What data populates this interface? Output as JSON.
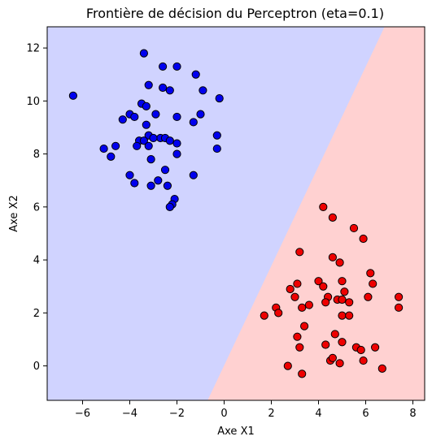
{
  "chart_data": {
    "type": "scatter",
    "title": "Frontière de décision du Perceptron (eta=0.1)",
    "xlabel": "Axe X1",
    "ylabel": "Axe X2",
    "xlim": [
      -7.5,
      8.5
    ],
    "ylim": [
      -1.3,
      12.8
    ],
    "xticks": [
      -6,
      -4,
      -2,
      0,
      2,
      4,
      6,
      8
    ],
    "yticks": [
      0,
      2,
      4,
      6,
      8,
      10,
      12
    ],
    "grid": false,
    "decision_boundary": {
      "points": [
        [
          -0.7,
          -1.3
        ],
        [
          6.8,
          12.8
        ]
      ],
      "region_left_color": "#d0d3ff",
      "region_right_color": "#ffd1d1"
    },
    "series": [
      {
        "color": "#0000ee",
        "edge_color": "#000000",
        "points": [
          [
            -6.4,
            10.2
          ],
          [
            -3.4,
            11.8
          ],
          [
            -2.6,
            11.3
          ],
          [
            -2.0,
            11.3
          ],
          [
            -1.2,
            11.0
          ],
          [
            -3.2,
            10.6
          ],
          [
            -2.6,
            10.5
          ],
          [
            -2.3,
            10.4
          ],
          [
            -0.9,
            10.4
          ],
          [
            -0.2,
            10.1
          ],
          [
            -3.5,
            9.9
          ],
          [
            -3.3,
            9.8
          ],
          [
            -4.0,
            9.5
          ],
          [
            -3.8,
            9.4
          ],
          [
            -4.3,
            9.3
          ],
          [
            -2.9,
            9.5
          ],
          [
            -2.0,
            9.4
          ],
          [
            -1.0,
            9.5
          ],
          [
            -1.3,
            9.2
          ],
          [
            -3.3,
            9.1
          ],
          [
            -3.2,
            8.7
          ],
          [
            -2.7,
            8.6
          ],
          [
            -2.5,
            8.6
          ],
          [
            -2.3,
            8.5
          ],
          [
            -3.0,
            8.6
          ],
          [
            -3.6,
            8.5
          ],
          [
            -3.4,
            8.5
          ],
          [
            -3.7,
            8.3
          ],
          [
            -3.2,
            8.3
          ],
          [
            -2.0,
            8.4
          ],
          [
            -0.3,
            8.7
          ],
          [
            -0.3,
            8.2
          ],
          [
            -5.1,
            8.2
          ],
          [
            -4.6,
            8.3
          ],
          [
            -4.8,
            7.9
          ],
          [
            -2.0,
            8.0
          ],
          [
            -3.1,
            7.8
          ],
          [
            -2.5,
            7.4
          ],
          [
            -4.0,
            7.2
          ],
          [
            -2.8,
            7.0
          ],
          [
            -1.3,
            7.2
          ],
          [
            -3.8,
            6.9
          ],
          [
            -3.1,
            6.8
          ],
          [
            -2.4,
            6.8
          ],
          [
            -2.1,
            6.3
          ],
          [
            -2.2,
            6.1
          ],
          [
            -2.3,
            6.0
          ]
        ]
      },
      {
        "color": "#ee0000",
        "edge_color": "#000000",
        "points": [
          [
            4.2,
            6.0
          ],
          [
            4.6,
            5.6
          ],
          [
            5.5,
            5.2
          ],
          [
            5.9,
            4.8
          ],
          [
            3.2,
            4.3
          ],
          [
            4.6,
            4.1
          ],
          [
            4.9,
            3.9
          ],
          [
            6.2,
            3.5
          ],
          [
            3.1,
            3.1
          ],
          [
            4.0,
            3.2
          ],
          [
            5.0,
            3.2
          ],
          [
            6.3,
            3.1
          ],
          [
            2.8,
            2.9
          ],
          [
            4.2,
            3.0
          ],
          [
            5.1,
            2.8
          ],
          [
            3.0,
            2.6
          ],
          [
            4.4,
            2.6
          ],
          [
            4.3,
            2.4
          ],
          [
            4.8,
            2.5
          ],
          [
            5.0,
            2.5
          ],
          [
            6.1,
            2.6
          ],
          [
            7.4,
            2.6
          ],
          [
            5.3,
            2.4
          ],
          [
            3.6,
            2.3
          ],
          [
            3.3,
            2.2
          ],
          [
            2.2,
            2.2
          ],
          [
            2.3,
            2.0
          ],
          [
            7.4,
            2.2
          ],
          [
            1.7,
            1.9
          ],
          [
            5.0,
            1.9
          ],
          [
            5.3,
            1.9
          ],
          [
            3.4,
            1.5
          ],
          [
            4.7,
            1.2
          ],
          [
            3.1,
            1.1
          ],
          [
            4.3,
            0.8
          ],
          [
            3.2,
            0.7
          ],
          [
            5.0,
            0.9
          ],
          [
            5.6,
            0.7
          ],
          [
            5.8,
            0.6
          ],
          [
            6.4,
            0.7
          ],
          [
            4.5,
            0.2
          ],
          [
            4.6,
            0.3
          ],
          [
            4.9,
            0.1
          ],
          [
            5.9,
            0.2
          ],
          [
            2.7,
            0.0
          ],
          [
            3.3,
            -0.3
          ],
          [
            6.7,
            -0.1
          ]
        ]
      }
    ]
  }
}
